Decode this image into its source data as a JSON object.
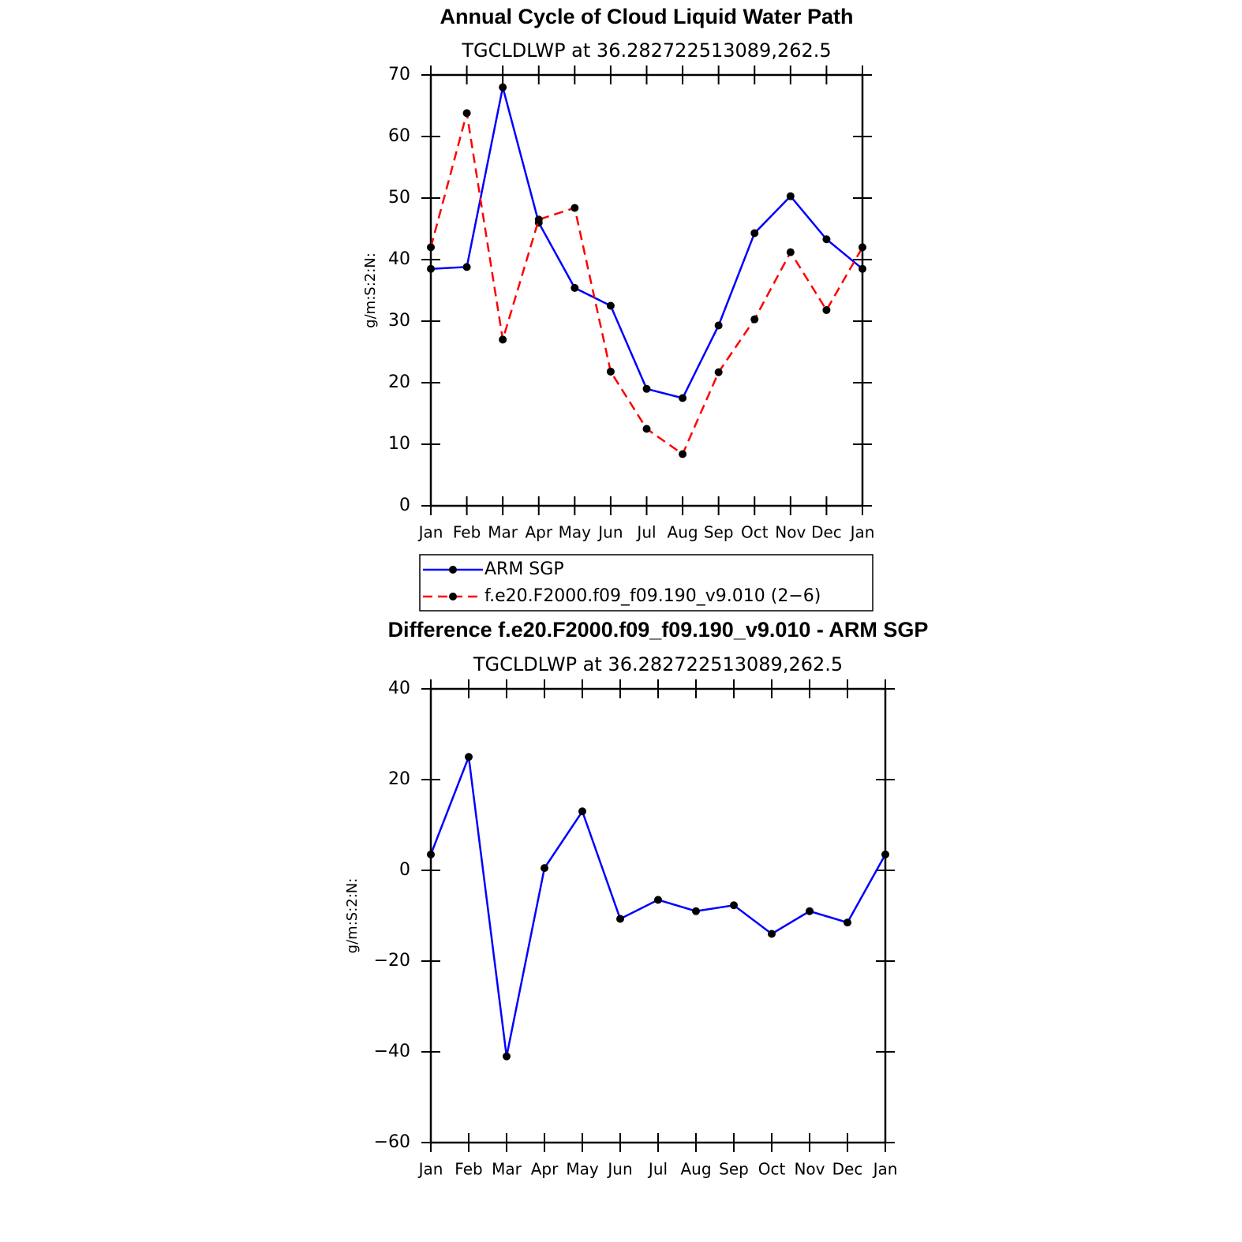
{
  "chart_data": [
    {
      "type": "line",
      "title": "Annual Cycle of Cloud Liquid Water Path",
      "subtitle": "TGCLDLWP at 36.282722513089,262.5",
      "y_label": "g/m:S:2:N:",
      "categories": [
        "Jan",
        "Feb",
        "Mar",
        "Apr",
        "May",
        "Jun",
        "Jul",
        "Aug",
        "Sep",
        "Oct",
        "Nov",
        "Dec",
        "Jan"
      ],
      "ylim": [
        0,
        70
      ],
      "yticks": [
        0,
        10,
        20,
        30,
        40,
        50,
        60,
        70
      ],
      "legend": "below",
      "series": [
        {
          "name": "ARM SGP",
          "color": "#0000ff",
          "line_style": "solid",
          "values": [
            38.5,
            38.8,
            68,
            46,
            35.4,
            32.5,
            19,
            17.5,
            29.3,
            44.3,
            50.3,
            43.3,
            38.5
          ]
        },
        {
          "name": "f.e20.F2000.f09_f09.190_v9.010 (2−6)",
          "color": "#ff0000",
          "line_style": "dashed",
          "values": [
            42,
            63.8,
            27,
            46.5,
            48.4,
            21.8,
            12.5,
            8.4,
            21.7,
            30.3,
            41.2,
            31.8,
            42
          ]
        }
      ]
    },
    {
      "type": "line",
      "title": "Difference f.e20.F2000.f09_f09.190_v9.010 - ARM SGP",
      "subtitle": "TGCLDLWP at 36.282722513089,262.5",
      "y_label": "g/m:S:2:N:",
      "categories": [
        "Jan",
        "Feb",
        "Mar",
        "Apr",
        "May",
        "Jun",
        "Jul",
        "Aug",
        "Sep",
        "Oct",
        "Nov",
        "Dec",
        "Jan"
      ],
      "ylim": [
        -60,
        40
      ],
      "yticks": [
        {
          "value": -60,
          "label": "−60"
        },
        {
          "value": -40,
          "label": "−40"
        },
        {
          "value": -20,
          "label": "−20"
        },
        0,
        20,
        40
      ],
      "series": [
        {
          "color": "#0000ff",
          "line_style": "solid",
          "values": [
            3.5,
            25,
            -41,
            0.5,
            13,
            -10.7,
            -6.5,
            -9,
            -7.7,
            -14,
            -9,
            -11.5,
            3.5
          ]
        }
      ]
    }
  ]
}
